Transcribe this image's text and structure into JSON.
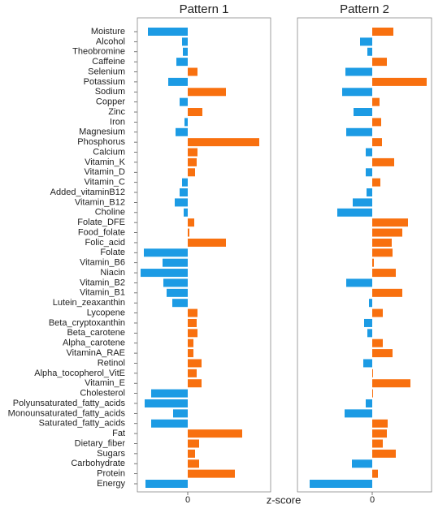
{
  "chart_data": {
    "type": "bar",
    "orientation": "horizontal",
    "xlabel": "z-score",
    "positive_color": "#f8700f",
    "negative_color": "#1c9be4",
    "categories": [
      "Moisture",
      "Alcohol",
      "Theobromine",
      "Caffeine",
      "Selenium",
      "Potassium",
      "Sodium",
      "Copper",
      "Zinc",
      "Iron",
      "Magnesium",
      "Phosphorus",
      "Calcium",
      "Vitamin_K",
      "Vitamin_D",
      "Vitamin_C",
      "Added_vitaminB12",
      "Vitamin_B12",
      "Choline",
      "Folate_DFE",
      "Food_folate",
      "Folic_acid",
      "Folate",
      "Vitamin_B6",
      "Niacin",
      "Vitamin_B2",
      "Vitamin_B1",
      "Lutein_zeaxanthin",
      "Lycopene",
      "Beta_cryptoxanthin",
      "Beta_carotene",
      "Alpha_carotene",
      "VitaminA_RAE",
      "Retinol",
      "Alpha_tocopherol_VitE",
      "Vitamin_E",
      "Cholesterol",
      "Polyunsaturated_fatty_acids",
      "Monounsaturated_fatty_acids",
      "Saturated_fatty_acids",
      "Fat",
      "Dietary_fiber",
      "Sugars",
      "Carbohydrate",
      "Protein",
      "Energy"
    ],
    "series": [
      {
        "name": "Pattern 1",
        "xlim": [
          -3.1,
          5.1
        ],
        "xticks": [
          0
        ],
        "values": [
          -2.45,
          -0.35,
          -0.3,
          -0.7,
          0.6,
          -1.2,
          2.35,
          -0.5,
          0.9,
          -0.2,
          -0.75,
          4.4,
          0.6,
          0.55,
          0.45,
          -0.35,
          -0.5,
          -0.8,
          -0.25,
          0.4,
          0.1,
          2.35,
          -2.7,
          -1.55,
          -2.9,
          -1.5,
          -1.3,
          -0.95,
          0.6,
          0.55,
          0.6,
          0.35,
          0.35,
          0.85,
          0.55,
          0.85,
          -2.25,
          -2.65,
          -0.9,
          -2.25,
          3.35,
          0.7,
          0.45,
          0.7,
          2.9,
          -2.6
        ]
      },
      {
        "name": "Pattern 2",
        "xlim": [
          -4.6,
          3.65
        ],
        "xticks": [
          0
        ],
        "values": [
          1.3,
          -0.75,
          -0.3,
          0.9,
          -1.65,
          3.35,
          -1.85,
          0.45,
          -1.15,
          0.55,
          -1.6,
          0.6,
          -0.4,
          1.35,
          -0.4,
          0.5,
          -0.35,
          -1.2,
          -2.15,
          2.2,
          1.85,
          1.2,
          1.25,
          0.1,
          1.45,
          -1.6,
          1.85,
          -0.2,
          0.65,
          -0.5,
          -0.3,
          0.65,
          1.25,
          -0.55,
          0.05,
          2.35,
          0.05,
          -0.4,
          -1.7,
          0.95,
          0.9,
          0.65,
          1.45,
          -1.25,
          0.35,
          -3.85
        ]
      }
    ]
  }
}
